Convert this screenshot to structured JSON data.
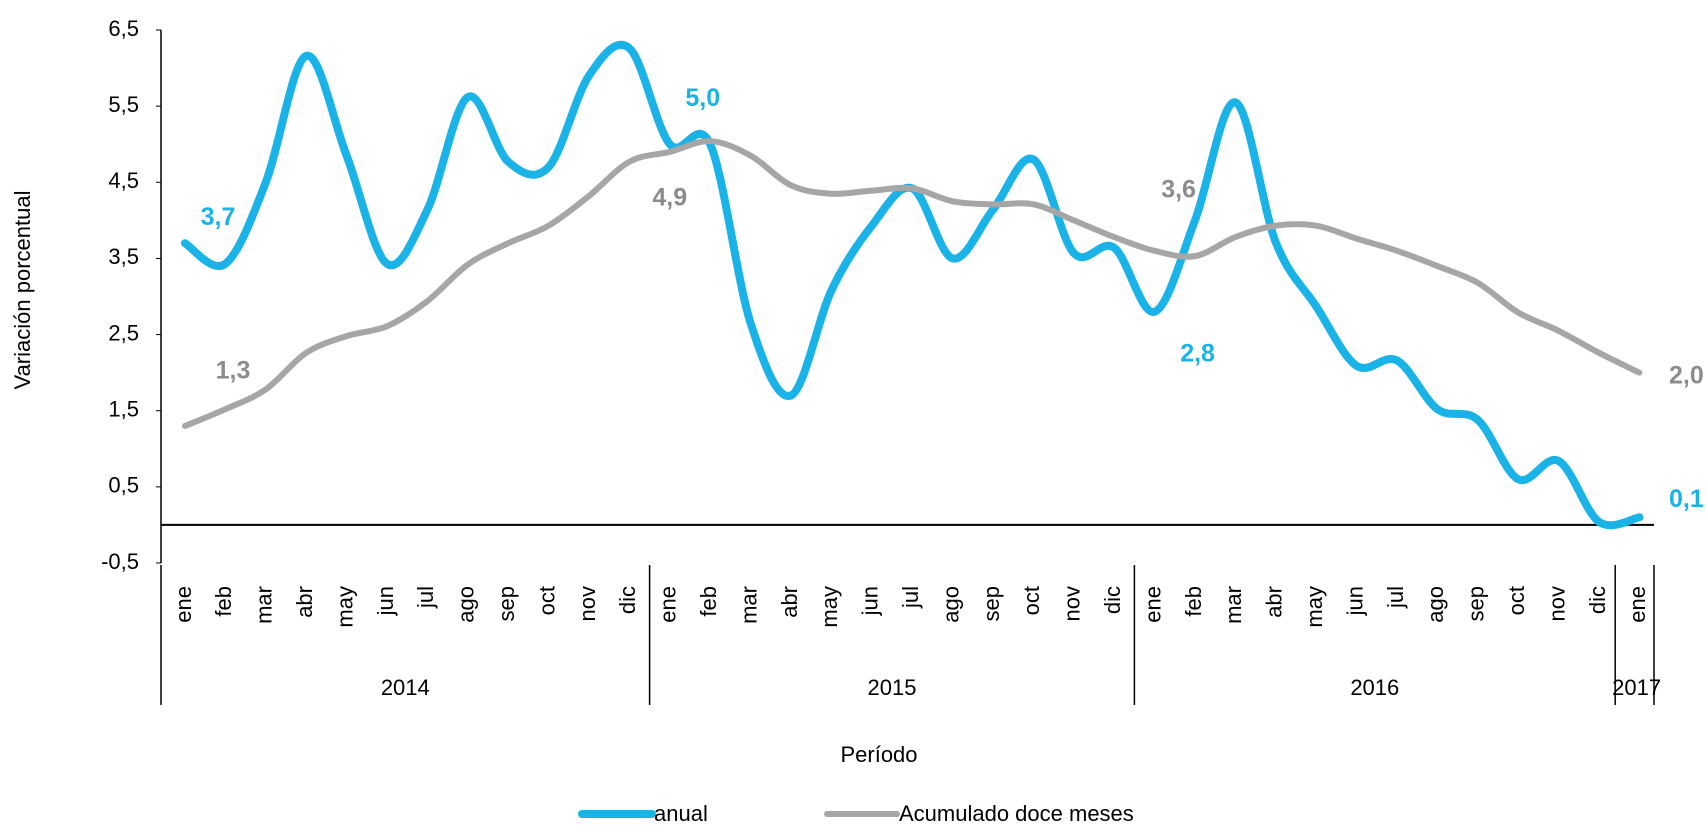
{
  "chart_data": {
    "type": "line",
    "y_label": "Variación porcentual",
    "x_label": "Período",
    "categories": [
      "ene",
      "feb",
      "mar",
      "abr",
      "may",
      "jun",
      "jul",
      "ago",
      "sep",
      "oct",
      "nov",
      "dic",
      "ene",
      "feb",
      "mar",
      "abr",
      "may",
      "jun",
      "jul",
      "ago",
      "sep",
      "oct",
      "nov",
      "dic",
      "ene",
      "feb",
      "mar",
      "abr",
      "may",
      "jun",
      "jul",
      "ago",
      "sep",
      "oct",
      "nov",
      "dic",
      "ene"
    ],
    "year_groups": [
      {
        "label": "2014",
        "count": 12
      },
      {
        "label": "2015",
        "count": 12
      },
      {
        "label": "2016",
        "count": 12
      },
      {
        "label": "2017",
        "count": 1
      }
    ],
    "series": [
      {
        "name": "anual",
        "color": "#1ab3e8",
        "values": [
          3.7,
          3.43,
          4.5,
          6.16,
          4.85,
          3.43,
          4.14,
          5.62,
          4.77,
          4.7,
          5.9,
          6.26,
          5.0,
          5.0,
          2.65,
          1.7,
          3.08,
          3.93,
          4.42,
          3.5,
          4.14,
          4.8,
          3.57,
          3.64,
          2.8,
          4.0,
          5.55,
          3.71,
          2.87,
          2.09,
          2.16,
          1.52,
          1.38,
          0.6,
          0.84,
          0.04,
          0.1
        ],
        "value_labels": [
          "3,7",
          null,
          null,
          null,
          null,
          null,
          null,
          null,
          null,
          null,
          null,
          null,
          "5,0",
          null,
          null,
          null,
          null,
          null,
          null,
          null,
          null,
          null,
          null,
          null,
          "2,8",
          null,
          null,
          null,
          null,
          null,
          null,
          null,
          null,
          null,
          null,
          null,
          "0,1"
        ]
      },
      {
        "name": "Acumulado doce meses",
        "color": "#a6a6a6",
        "values": [
          1.3,
          1.52,
          1.78,
          2.26,
          2.48,
          2.61,
          2.94,
          3.42,
          3.7,
          3.93,
          4.32,
          4.77,
          4.9,
          5.04,
          4.85,
          4.46,
          4.35,
          4.39,
          4.42,
          4.25,
          4.21,
          4.21,
          4.0,
          3.78,
          3.6,
          3.53,
          3.78,
          3.93,
          3.93,
          3.76,
          3.6,
          3.4,
          3.18,
          2.79,
          2.55,
          2.26,
          2.0
        ],
        "value_labels": [
          "1,3",
          null,
          null,
          null,
          null,
          null,
          null,
          null,
          null,
          null,
          null,
          null,
          "4,9",
          null,
          null,
          null,
          null,
          null,
          null,
          null,
          null,
          null,
          null,
          null,
          "3,6",
          null,
          null,
          null,
          null,
          null,
          null,
          null,
          null,
          null,
          null,
          null,
          "2,0"
        ]
      }
    ],
    "ylim": [
      -0.5,
      6.5
    ],
    "yticks": [
      {
        "value": -0.5,
        "label": "-0,5"
      },
      {
        "value": 0.5,
        "label": "0,5"
      },
      {
        "value": 1.5,
        "label": "1,5"
      },
      {
        "value": 2.5,
        "label": "2,5"
      },
      {
        "value": 3.5,
        "label": "3,5"
      },
      {
        "value": 4.5,
        "label": "4,5"
      },
      {
        "value": 5.5,
        "label": "5,5"
      },
      {
        "value": 6.5,
        "label": "6,5"
      }
    ],
    "grid": false
  }
}
